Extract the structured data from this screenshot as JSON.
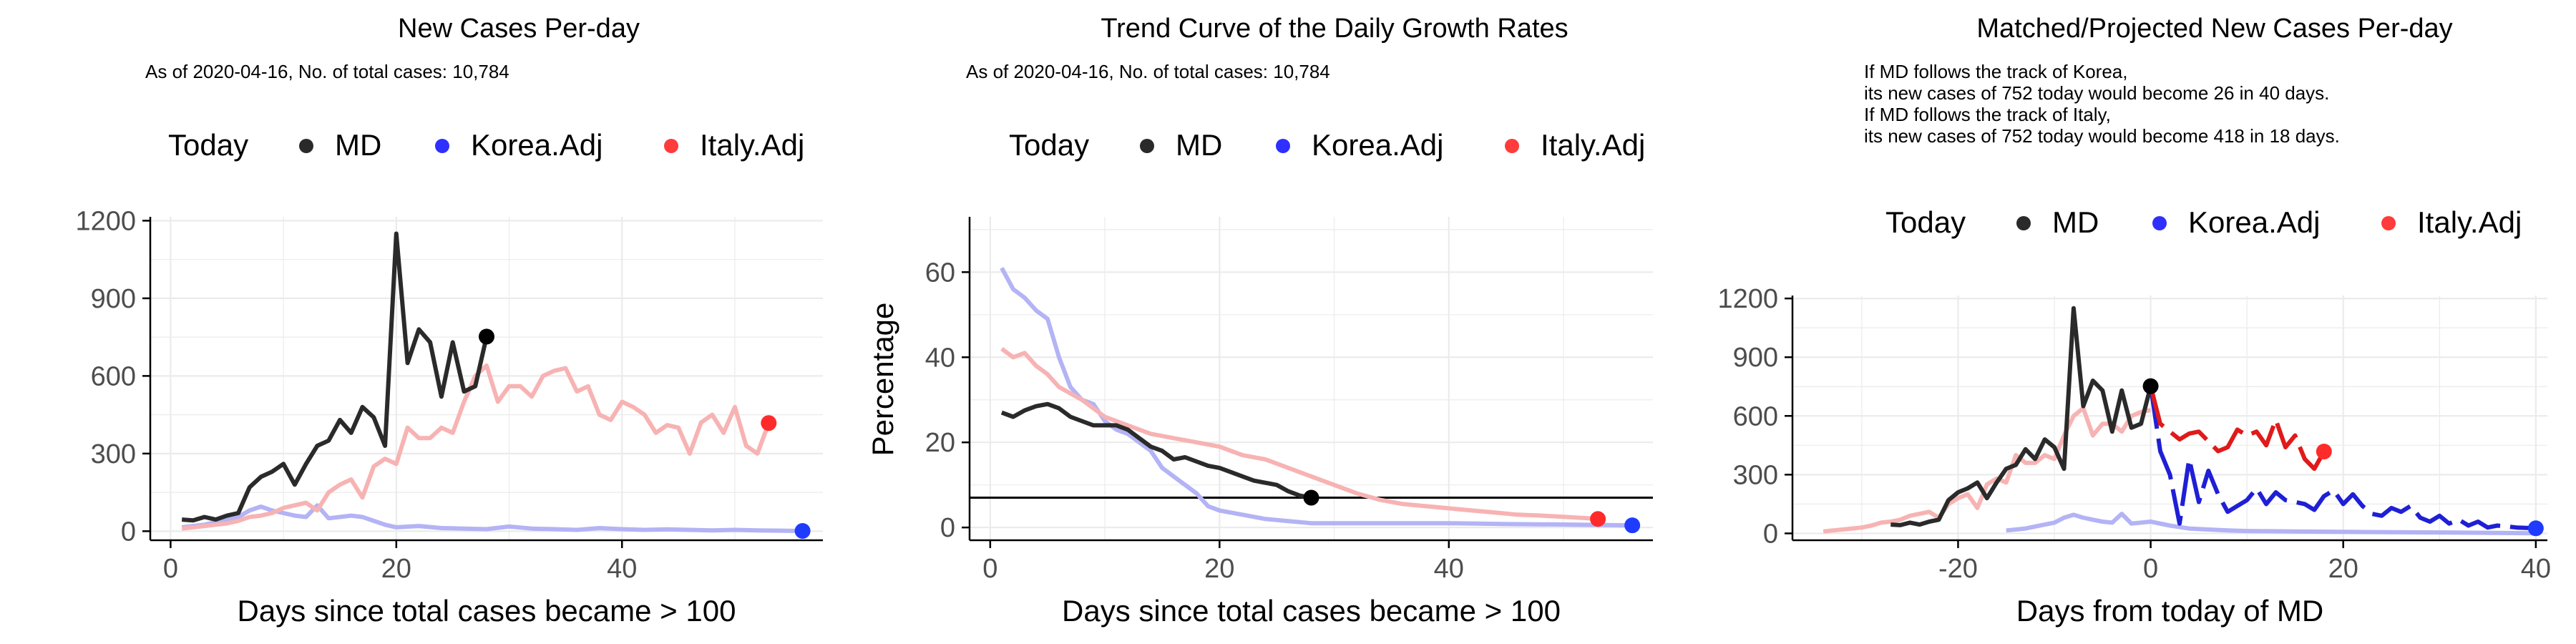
{
  "colors": {
    "md": "#2a2a2a",
    "md_point": "#000000",
    "korea_light": "#b3b3f5",
    "italy_light": "#f7b3b3",
    "korea_bright": "#1f1fd6",
    "italy_bright": "#e01a1a",
    "korea_point": "#1f3bff",
    "italy_point": "#ff2b2b",
    "grid": "#ebebeb",
    "axis": "#000000"
  },
  "legend": {
    "title": "Today",
    "items": [
      {
        "label": "MD",
        "color": "#2a2a2a"
      },
      {
        "label": "Korea.Adj",
        "color": "#2f2fff"
      },
      {
        "label": "Italy.Adj",
        "color": "#ff3b3b"
      }
    ]
  },
  "chart_data": [
    {
      "type": "line",
      "title": "New Cases Per-day",
      "subtitle": "As of 2020-04-16, No. of total cases: 10,784",
      "xlabel": "Days since total cases became > 100",
      "ylabel": "",
      "xlim": [
        -1.8,
        57.8
      ],
      "ylim": [
        -35,
        1215
      ],
      "xticks": [
        0,
        20,
        40
      ],
      "yticks": [
        0,
        300,
        600,
        900,
        1200
      ],
      "grid": true,
      "legend_position": "top",
      "series": [
        {
          "name": "MD",
          "style": "dark",
          "x": [
            1,
            2,
            3,
            4,
            5,
            6,
            7,
            8,
            9,
            10,
            11,
            12,
            13,
            14,
            15,
            16,
            17,
            18,
            19,
            20,
            21,
            22,
            23,
            24,
            25,
            26,
            27,
            28
          ],
          "y": [
            45,
            42,
            55,
            45,
            60,
            70,
            170,
            210,
            230,
            260,
            180,
            260,
            330,
            350,
            430,
            380,
            480,
            440,
            330,
            1150,
            650,
            780,
            730,
            520,
            730,
            540,
            560,
            752
          ]
        },
        {
          "name": "Korea.Adj",
          "style": "korea_light",
          "x": [
            1,
            2,
            3,
            4,
            5,
            6,
            7,
            8,
            9,
            10,
            11,
            12,
            13,
            14,
            15,
            16,
            17,
            18,
            19,
            20,
            22,
            24,
            26,
            28,
            30,
            32,
            34,
            36,
            38,
            40,
            42,
            44,
            46,
            48,
            50,
            52,
            54,
            56
          ],
          "y": [
            15,
            20,
            25,
            35,
            45,
            55,
            80,
            95,
            80,
            70,
            60,
            55,
            100,
            50,
            55,
            60,
            55,
            40,
            25,
            15,
            20,
            12,
            10,
            8,
            18,
            10,
            8,
            5,
            12,
            8,
            5,
            7,
            5,
            3,
            5,
            3,
            2,
            1
          ]
        },
        {
          "name": "Italy.Adj",
          "style": "italy_light",
          "x": [
            1,
            2,
            3,
            4,
            5,
            6,
            7,
            8,
            9,
            10,
            11,
            12,
            13,
            14,
            15,
            16,
            17,
            18,
            19,
            20,
            21,
            22,
            23,
            24,
            25,
            26,
            27,
            28,
            29,
            30,
            31,
            32,
            33,
            34,
            35,
            36,
            37,
            38,
            39,
            40,
            41,
            42,
            43,
            44,
            45,
            46,
            47,
            48,
            49,
            50,
            51,
            52,
            53
          ],
          "y": [
            10,
            15,
            20,
            25,
            30,
            40,
            55,
            60,
            70,
            90,
            100,
            110,
            80,
            150,
            180,
            200,
            130,
            250,
            280,
            260,
            400,
            360,
            360,
            400,
            380,
            500,
            600,
            640,
            500,
            560,
            560,
            520,
            600,
            620,
            630,
            540,
            560,
            450,
            430,
            500,
            480,
            450,
            380,
            410,
            400,
            300,
            420,
            450,
            380,
            480,
            330,
            300,
            418
          ]
        }
      ],
      "points": [
        {
          "series": "MD",
          "x": 28,
          "y": 752,
          "style": "md_point"
        },
        {
          "series": "Italy.Adj",
          "x": 53,
          "y": 418,
          "style": "italy_point"
        },
        {
          "series": "Korea.Adj",
          "x": 56,
          "y": 1,
          "style": "korea_point"
        }
      ]
    },
    {
      "type": "line",
      "title": "Trend Curve of the Daily Growth Rates",
      "subtitle": "As of 2020-04-16, No. of total cases: 10,784",
      "xlabel": "Days since total cases became > 100",
      "ylabel": "Percentage",
      "xlim": [
        -1.8,
        57.8
      ],
      "ylim": [
        -3,
        73
      ],
      "xticks": [
        0,
        20,
        40
      ],
      "yticks": [
        0,
        20,
        40,
        60
      ],
      "hline": 7,
      "grid": true,
      "legend_position": "top",
      "series": [
        {
          "name": "MD",
          "style": "dark",
          "x": [
            1,
            2,
            3,
            4,
            5,
            6,
            7,
            8,
            9,
            10,
            11,
            12,
            13,
            14,
            15,
            16,
            17,
            18,
            19,
            20,
            21,
            22,
            23,
            24,
            25,
            26,
            27,
            28
          ],
          "y": [
            27,
            26,
            27.5,
            28.5,
            29,
            28,
            26,
            25,
            24,
            24,
            24,
            23,
            21,
            19,
            18,
            16,
            16.5,
            15.5,
            14.5,
            14,
            13,
            12,
            11,
            10.5,
            10,
            8.5,
            7.5,
            7
          ]
        },
        {
          "name": "Korea.Adj",
          "style": "korea_light",
          "x": [
            1,
            2,
            3,
            4,
            5,
            6,
            7,
            8,
            9,
            10,
            11,
            12,
            13,
            14,
            15,
            16,
            17,
            18,
            19,
            20,
            22,
            24,
            26,
            28,
            30,
            35,
            40,
            45,
            50,
            56
          ],
          "y": [
            61,
            56,
            54,
            51,
            49,
            40,
            33,
            30,
            29,
            25,
            23,
            22,
            20,
            18,
            14,
            12,
            10,
            8,
            5,
            4,
            3,
            2,
            1.5,
            1,
            1,
            1,
            1,
            0.8,
            0.7,
            0.5
          ]
        },
        {
          "name": "Italy.Adj",
          "style": "italy_light",
          "x": [
            1,
            2,
            3,
            4,
            5,
            6,
            8,
            10,
            12,
            14,
            16,
            18,
            20,
            22,
            24,
            26,
            28,
            30,
            32,
            34,
            36,
            38,
            40,
            42,
            44,
            46,
            48,
            50,
            52,
            53
          ],
          "y": [
            42,
            40,
            41,
            38,
            36,
            33,
            30,
            26,
            24,
            22,
            21,
            20,
            19,
            17,
            16,
            14,
            12,
            10,
            8,
            6.5,
            5.5,
            5,
            4.5,
            4,
            3.5,
            3,
            2.8,
            2.5,
            2.2,
            2
          ]
        }
      ],
      "points": [
        {
          "series": "MD",
          "x": 28,
          "y": 7,
          "style": "md_point"
        },
        {
          "series": "Italy.Adj",
          "x": 53,
          "y": 2,
          "style": "italy_point"
        },
        {
          "series": "Korea.Adj",
          "x": 56,
          "y": 0.5,
          "style": "korea_point"
        }
      ]
    },
    {
      "type": "line",
      "title": "Matched/Projected New Cases Per-day",
      "subtitle_lines": [
        "If MD follows the track of Korea,",
        "its new cases of 752 today would become 26 in 40 days.",
        "If MD follows the track of Italy,",
        "its new cases of 752 today would become 418 in 18 days."
      ],
      "xlabel": "Days from today of MD",
      "ylabel": "",
      "xlim": [
        -37.2,
        41.2
      ],
      "ylim": [
        -35,
        1215
      ],
      "xticks": [
        -20,
        0,
        20,
        40
      ],
      "yticks": [
        0,
        300,
        600,
        900,
        1200
      ],
      "grid": true,
      "legend_position": "top",
      "series": [
        {
          "name": "MD",
          "style": "dark",
          "x": [
            -27,
            -26,
            -25,
            -24,
            -23,
            -22,
            -21,
            -20,
            -19,
            -18,
            -17,
            -16,
            -15,
            -14,
            -13,
            -12,
            -11,
            -10,
            -9,
            -8,
            -7,
            -6,
            -5,
            -4,
            -3,
            -2,
            -1,
            0
          ],
          "y": [
            45,
            42,
            55,
            45,
            60,
            70,
            170,
            210,
            230,
            260,
            180,
            260,
            330,
            350,
            430,
            380,
            480,
            440,
            330,
            1150,
            650,
            780,
            730,
            520,
            730,
            540,
            560,
            752
          ]
        },
        {
          "name": "Korea.Adj",
          "style": "korea_light",
          "x": [
            -15,
            -14,
            -13,
            -12,
            -11,
            -10,
            -9,
            -8,
            -7,
            -6,
            -5,
            -4,
            -3,
            -2,
            -1,
            0,
            2,
            4,
            6,
            8,
            10,
            15,
            20,
            25,
            30,
            35,
            40
          ],
          "y": [
            15,
            20,
            25,
            35,
            45,
            55,
            80,
            95,
            80,
            70,
            60,
            55,
            100,
            50,
            55,
            60,
            40,
            25,
            20,
            15,
            12,
            10,
            8,
            6,
            5,
            3,
            1
          ]
        },
        {
          "name": "Italy.Adj",
          "style": "italy_light",
          "x": [
            -34,
            -33,
            -32,
            -31,
            -30,
            -29,
            -28,
            -27,
            -26,
            -25,
            -24,
            -23,
            -22,
            -21,
            -20,
            -19,
            -18,
            -17,
            -16,
            -15,
            -14,
            -13,
            -12,
            -11,
            -10,
            -9,
            -8,
            -7,
            -6,
            -5,
            -4,
            -3,
            -2,
            -1,
            0
          ],
          "y": [
            10,
            15,
            20,
            25,
            30,
            40,
            55,
            60,
            70,
            90,
            100,
            110,
            80,
            150,
            180,
            200,
            130,
            250,
            280,
            260,
            400,
            360,
            360,
            400,
            380,
            500,
            600,
            640,
            500,
            560,
            560,
            520,
            600,
            620,
            630
          ]
        },
        {
          "name": "Korea.Adj",
          "style": "korea_bright",
          "dashed": true,
          "x": [
            0,
            1,
            2,
            3,
            4,
            5,
            6,
            7,
            8,
            9,
            10,
            11,
            12,
            13,
            14,
            15,
            16,
            17,
            18,
            19,
            20,
            21,
            22,
            23,
            24,
            25,
            26,
            27,
            28,
            29,
            30,
            31,
            32,
            33,
            34,
            35,
            36,
            37,
            38,
            39,
            40
          ],
          "y": [
            752,
            420,
            300,
            50,
            380,
            160,
            320,
            200,
            110,
            140,
            170,
            230,
            150,
            210,
            170,
            160,
            150,
            120,
            190,
            220,
            150,
            200,
            140,
            100,
            90,
            130,
            110,
            140,
            80,
            60,
            90,
            50,
            70,
            40,
            60,
            30,
            40,
            35,
            30,
            28,
            26
          ]
        },
        {
          "name": "Italy.Adj",
          "style": "italy_bright",
          "dashed": true,
          "x": [
            0,
            1,
            2,
            3,
            4,
            5,
            6,
            7,
            8,
            9,
            10,
            11,
            12,
            13,
            14,
            15,
            16,
            17,
            18
          ],
          "y": [
            752,
            560,
            520,
            480,
            510,
            520,
            470,
            420,
            440,
            530,
            500,
            520,
            450,
            580,
            440,
            500,
            380,
            330,
            418
          ]
        }
      ],
      "points": [
        {
          "series": "MD",
          "x": 0,
          "y": 752,
          "style": "md_point"
        },
        {
          "series": "Italy.Adj",
          "x": 18,
          "y": 418,
          "style": "italy_point"
        },
        {
          "series": "Korea.Adj",
          "x": 40,
          "y": 26,
          "style": "korea_point"
        }
      ]
    }
  ]
}
